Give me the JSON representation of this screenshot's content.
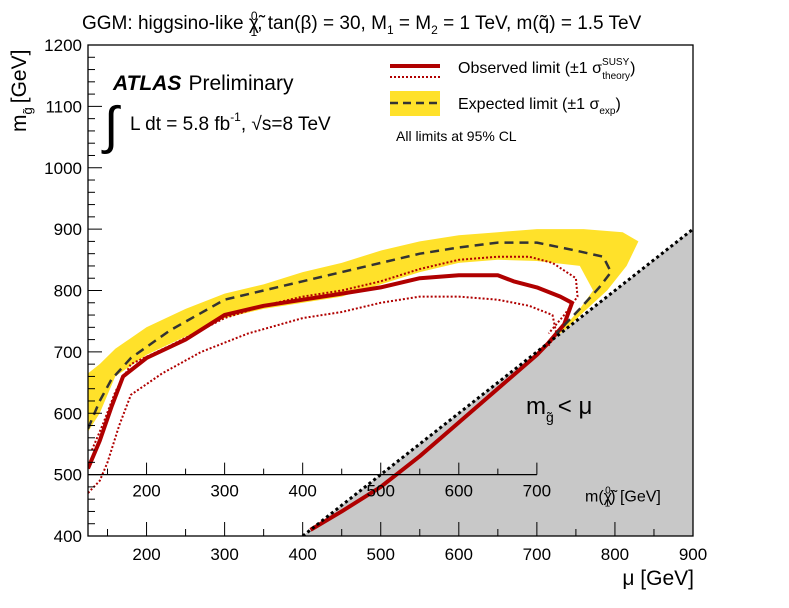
{
  "chart_data": {
    "type": "line",
    "title": "GGM: higgsino-like χ̃₁⁰, tan(β) = 30, M₁ = M₂ = 1 TeV, m(q̃) = 1.5 TeV",
    "title_parts": {
      "prefix": "GGM: higgsino-like ",
      "chi_symbol": "χ̃",
      "chi_sub": "1",
      "chi_sup": "0",
      "mid1": ", tan(β) = 30, M",
      "m1_sub": "1",
      "mid2": " = M",
      "m2_sub": "2",
      "mid3": " = 1 TeV, m(q̃) = 1.5 TeV"
    },
    "experiment_label": "ATLAS",
    "experiment_status": "Preliminary",
    "luminosity_label": "L dt = 5.8 fb",
    "luminosity_sup": "-1",
    "energy_label": ", √s=8 TeV",
    "xlabel": "μ [GeV]",
    "ylabel_main": "m",
    "ylabel_sub": "g̃",
    "ylabel_unit": "[GeV]",
    "xlim": [
      125,
      900
    ],
    "ylim": [
      400,
      1200
    ],
    "xticks": [
      200,
      300,
      400,
      500,
      600,
      700,
      800,
      900
    ],
    "yticks": [
      400,
      500,
      600,
      700,
      800,
      900,
      1000,
      1100,
      1200
    ],
    "secondary_axis": {
      "label_prefix": "m(",
      "label_symbol": "χ̃",
      "label_sub": "1",
      "label_sup": "0",
      "label_suffix": ") [GeV]",
      "ticks": [
        200,
        300,
        400,
        500,
        600,
        700
      ],
      "y_level": 500,
      "x_range": [
        125,
        700
      ]
    },
    "excluded_region_label": "m",
    "excluded_region_sub": "g̃",
    "excluded_region_rel": "< μ",
    "legend": {
      "observed": "Observed limit (±1 σ",
      "observed_sup": "SUSY",
      "observed_sub": "theory",
      "expected": "Expected limit (±1 σ",
      "expected_sub": "exp",
      "cl_note": "All limits at 95% CL"
    },
    "series": [
      {
        "name": "Observed limit",
        "color": "#b00000",
        "style": "solid",
        "points": [
          [
            125,
            510
          ],
          [
            140,
            555
          ],
          [
            155,
            610
          ],
          [
            170,
            660
          ],
          [
            200,
            690
          ],
          [
            250,
            720
          ],
          [
            300,
            760
          ],
          [
            350,
            775
          ],
          [
            400,
            785
          ],
          [
            450,
            795
          ],
          [
            500,
            805
          ],
          [
            550,
            820
          ],
          [
            600,
            825
          ],
          [
            650,
            825
          ],
          [
            670,
            815
          ],
          [
            700,
            805
          ],
          [
            730,
            790
          ],
          [
            745,
            780
          ],
          [
            735,
            745
          ],
          [
            715,
            715
          ],
          [
            700,
            695
          ],
          [
            650,
            640
          ],
          [
            600,
            585
          ],
          [
            550,
            530
          ],
          [
            500,
            480
          ],
          [
            450,
            440
          ],
          [
            410,
            410
          ]
        ]
      },
      {
        "name": "Observed +1σ theory",
        "color": "#b00000",
        "style": "dotted",
        "points": [
          [
            130,
            540
          ],
          [
            145,
            585
          ],
          [
            160,
            635
          ],
          [
            180,
            680
          ],
          [
            230,
            710
          ],
          [
            300,
            755
          ],
          [
            350,
            775
          ],
          [
            400,
            790
          ],
          [
            450,
            800
          ],
          [
            500,
            815
          ],
          [
            550,
            835
          ],
          [
            600,
            850
          ],
          [
            650,
            855
          ],
          [
            690,
            855
          ],
          [
            720,
            845
          ],
          [
            750,
            820
          ],
          [
            752,
            790
          ],
          [
            735,
            760
          ],
          [
            715,
            730
          ]
        ]
      },
      {
        "name": "Observed −1σ theory",
        "color": "#b00000",
        "style": "dotted",
        "points": [
          [
            125,
            470
          ],
          [
            140,
            490
          ],
          [
            150,
            520
          ],
          [
            165,
            580
          ],
          [
            180,
            630
          ],
          [
            220,
            665
          ],
          [
            270,
            700
          ],
          [
            330,
            730
          ],
          [
            400,
            755
          ],
          [
            450,
            765
          ],
          [
            500,
            780
          ],
          [
            550,
            790
          ],
          [
            600,
            790
          ],
          [
            650,
            785
          ],
          [
            690,
            775
          ],
          [
            720,
            760
          ],
          [
            725,
            730
          ],
          [
            715,
            710
          ]
        ]
      },
      {
        "name": "Expected limit",
        "color": "#333333",
        "style": "dashed",
        "points": [
          [
            125,
            575
          ],
          [
            140,
            620
          ],
          [
            155,
            655
          ],
          [
            180,
            690
          ],
          [
            230,
            735
          ],
          [
            300,
            785
          ],
          [
            350,
            800
          ],
          [
            400,
            815
          ],
          [
            450,
            830
          ],
          [
            500,
            845
          ],
          [
            550,
            860
          ],
          [
            600,
            870
          ],
          [
            650,
            878
          ],
          [
            700,
            878
          ],
          [
            750,
            865
          ],
          [
            785,
            855
          ],
          [
            795,
            830
          ],
          [
            780,
            805
          ],
          [
            755,
            770
          ],
          [
            725,
            730
          ]
        ]
      }
    ],
    "expected_band": {
      "name": "Expected ±1σ exp",
      "color": "#ffe12a",
      "upper": [
        [
          125,
          665
        ],
        [
          140,
          680
        ],
        [
          160,
          705
        ],
        [
          200,
          740
        ],
        [
          250,
          770
        ],
        [
          300,
          795
        ],
        [
          350,
          810
        ],
        [
          400,
          830
        ],
        [
          450,
          845
        ],
        [
          500,
          865
        ],
        [
          550,
          880
        ],
        [
          600,
          890
        ],
        [
          650,
          895
        ],
        [
          700,
          900
        ],
        [
          760,
          900
        ],
        [
          810,
          895
        ],
        [
          830,
          880
        ],
        [
          815,
          840
        ],
        [
          790,
          800
        ]
      ],
      "lower": [
        [
          790,
          800
        ],
        [
          760,
          765
        ],
        [
          740,
          740
        ],
        [
          725,
          725
        ],
        [
          755,
          770
        ],
        [
          772,
          800
        ],
        [
          755,
          840
        ],
        [
          700,
          848
        ],
        [
          650,
          850
        ],
        [
          600,
          845
        ],
        [
          550,
          830
        ],
        [
          500,
          810
        ],
        [
          450,
          790
        ],
        [
          400,
          780
        ],
        [
          350,
          770
        ],
        [
          300,
          755
        ],
        [
          250,
          725
        ],
        [
          200,
          695
        ],
        [
          160,
          660
        ],
        [
          140,
          600
        ],
        [
          125,
          570
        ]
      ]
    },
    "kinematic_boundary": {
      "relation": "m_gluino = mu",
      "color": "#000000",
      "style": "dotted",
      "fill": "#c8c8c8"
    }
  }
}
